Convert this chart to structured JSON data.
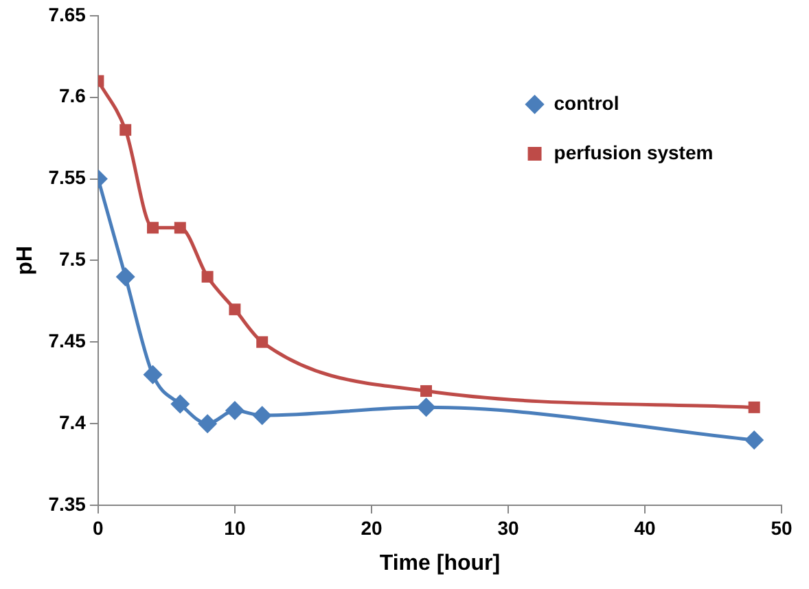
{
  "chart_data": {
    "type": "line",
    "xlabel": "Time [hour]",
    "ylabel": "pH",
    "xlim": [
      0,
      50
    ],
    "xticks": [
      0,
      10,
      20,
      30,
      40,
      50
    ],
    "ylim": [
      7.35,
      7.65
    ],
    "yticks": [
      7.35,
      7.4,
      7.45,
      7.5,
      7.55,
      7.6,
      7.65
    ],
    "grid": false,
    "legend": "top right",
    "series": [
      {
        "name": "control",
        "color": "#4a7ebb",
        "marker": "diamond",
        "x": [
          0,
          2,
          4,
          6,
          8,
          10,
          12,
          24,
          48
        ],
        "values": [
          7.55,
          7.49,
          7.43,
          7.412,
          7.4,
          7.408,
          7.405,
          7.41,
          7.39
        ]
      },
      {
        "name": "perfusion system",
        "color": "#be4b48",
        "marker": "square",
        "x": [
          0,
          2,
          4,
          6,
          8,
          10,
          12,
          24,
          48
        ],
        "values": [
          7.61,
          7.58,
          7.52,
          7.52,
          7.49,
          7.47,
          7.45,
          7.42,
          7.41
        ]
      }
    ]
  }
}
